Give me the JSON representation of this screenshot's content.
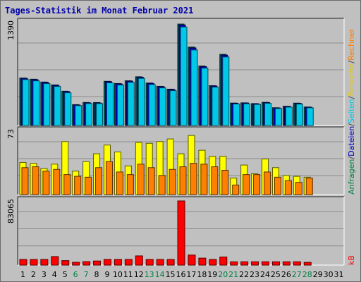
{
  "chart_data": {
    "title": "Tages-Statistik im Monat Februar 2021",
    "type": "bar",
    "categories": [
      "1",
      "2",
      "3",
      "4",
      "5",
      "6",
      "7",
      "8",
      "9",
      "10",
      "11",
      "12",
      "13",
      "14",
      "15",
      "16",
      "17",
      "18",
      "19",
      "20",
      "21",
      "22",
      "23",
      "24",
      "25",
      "26",
      "27",
      "28",
      "29",
      "30",
      "31"
    ],
    "weekend_days": [
      "6",
      "7",
      "13",
      "14",
      "20",
      "21",
      "27",
      "28"
    ],
    "panels": [
      {
        "name": "top",
        "y_max_label": "1390",
        "ylim": [
          0,
          1390
        ],
        "series": [
          {
            "name": "Anfragen",
            "color": "#006060",
            "values": [
              641,
              625,
              587,
              548,
              463,
              282,
              311,
              310,
              597,
              567,
              604,
              658,
              574,
              529,
              491,
              1370,
              1059,
              803,
              538,
              961,
              303,
              306,
              296,
              313,
              240,
              260,
              302,
              250,
              null,
              null,
              null
            ]
          },
          {
            "name": "Dateien",
            "color": "#0000c0",
            "values": [
              636,
              619,
              582,
              543,
              458,
              277,
              306,
              305,
              592,
              562,
              599,
              652,
              569,
              524,
              486,
              1357,
              1048,
              795,
              533,
              950,
              300,
              303,
              293,
              310,
              237,
              257,
              299,
              247,
              null,
              null,
              null
            ]
          },
          {
            "name": "Seiten",
            "color": "#00c8e8",
            "values": [
              620,
              603,
              566,
              527,
              442,
              268,
              297,
              296,
              576,
              546,
              583,
              636,
              553,
              508,
              470,
              1330,
              1020,
              775,
              518,
              925,
              290,
              293,
              284,
              300,
              229,
              248,
              289,
              239,
              null,
              null,
              null
            ]
          }
        ]
      },
      {
        "name": "middle",
        "y_max_label": "73",
        "ylim": [
          0,
          73
        ],
        "series": [
          {
            "name": "Besuche",
            "color": "#ffff00",
            "values": [
              37,
              36,
              30,
              35,
              61,
              27,
              38,
              47,
              57,
              49,
              33,
              60,
              59,
              61,
              64,
              47,
              68,
              51,
              44,
              44,
              19,
              34,
              24,
              41,
              31,
              22,
              21,
              20,
              null,
              null,
              null
            ]
          },
          {
            "name": "Rechner",
            "color": "#ff8000",
            "values": [
              31,
              32,
              27,
              29,
              23,
              21,
              20,
              31,
              38,
              26,
              23,
              35,
              31,
              22,
              29,
              32,
              36,
              35,
              32,
              28,
              11,
              23,
              23,
              26,
              20,
              16,
              14,
              19,
              null,
              null,
              null
            ]
          }
        ]
      },
      {
        "name": "bottom",
        "y_max_label": "83065",
        "ylim": [
          0,
          83065
        ],
        "series": [
          {
            "name": "kB",
            "color": "#ff0000",
            "values": [
              7300,
              7300,
              7300,
              11000,
              5800,
              3600,
              4500,
              5300,
              7300,
              7300,
              7300,
              11900,
              7300,
              7300,
              7300,
              83065,
              13000,
              9000,
              7300,
              10500,
              4200,
              4300,
              4300,
              4300,
              4300,
              4300,
              4300,
              3500,
              null,
              null,
              null
            ]
          }
        ]
      }
    ],
    "right_axis_labels": [
      {
        "text": "Anfragen",
        "color": "#008040"
      },
      {
        "text": "/",
        "color": "#404040"
      },
      {
        "text": "Dateien",
        "color": "#0000c0"
      },
      {
        "text": "/",
        "color": "#404040"
      },
      {
        "text": "Seiten",
        "color": "#00c8e8"
      },
      {
        "text": "/",
        "color": "#404040"
      },
      {
        "text": "Besuche",
        "color": "#e8c800"
      },
      {
        "text": "/",
        "color": "#404040"
      },
      {
        "text": "Rechner",
        "color": "#ff8000"
      },
      {
        "text": "kB",
        "color": "#ff0000"
      }
    ],
    "grid": true
  }
}
